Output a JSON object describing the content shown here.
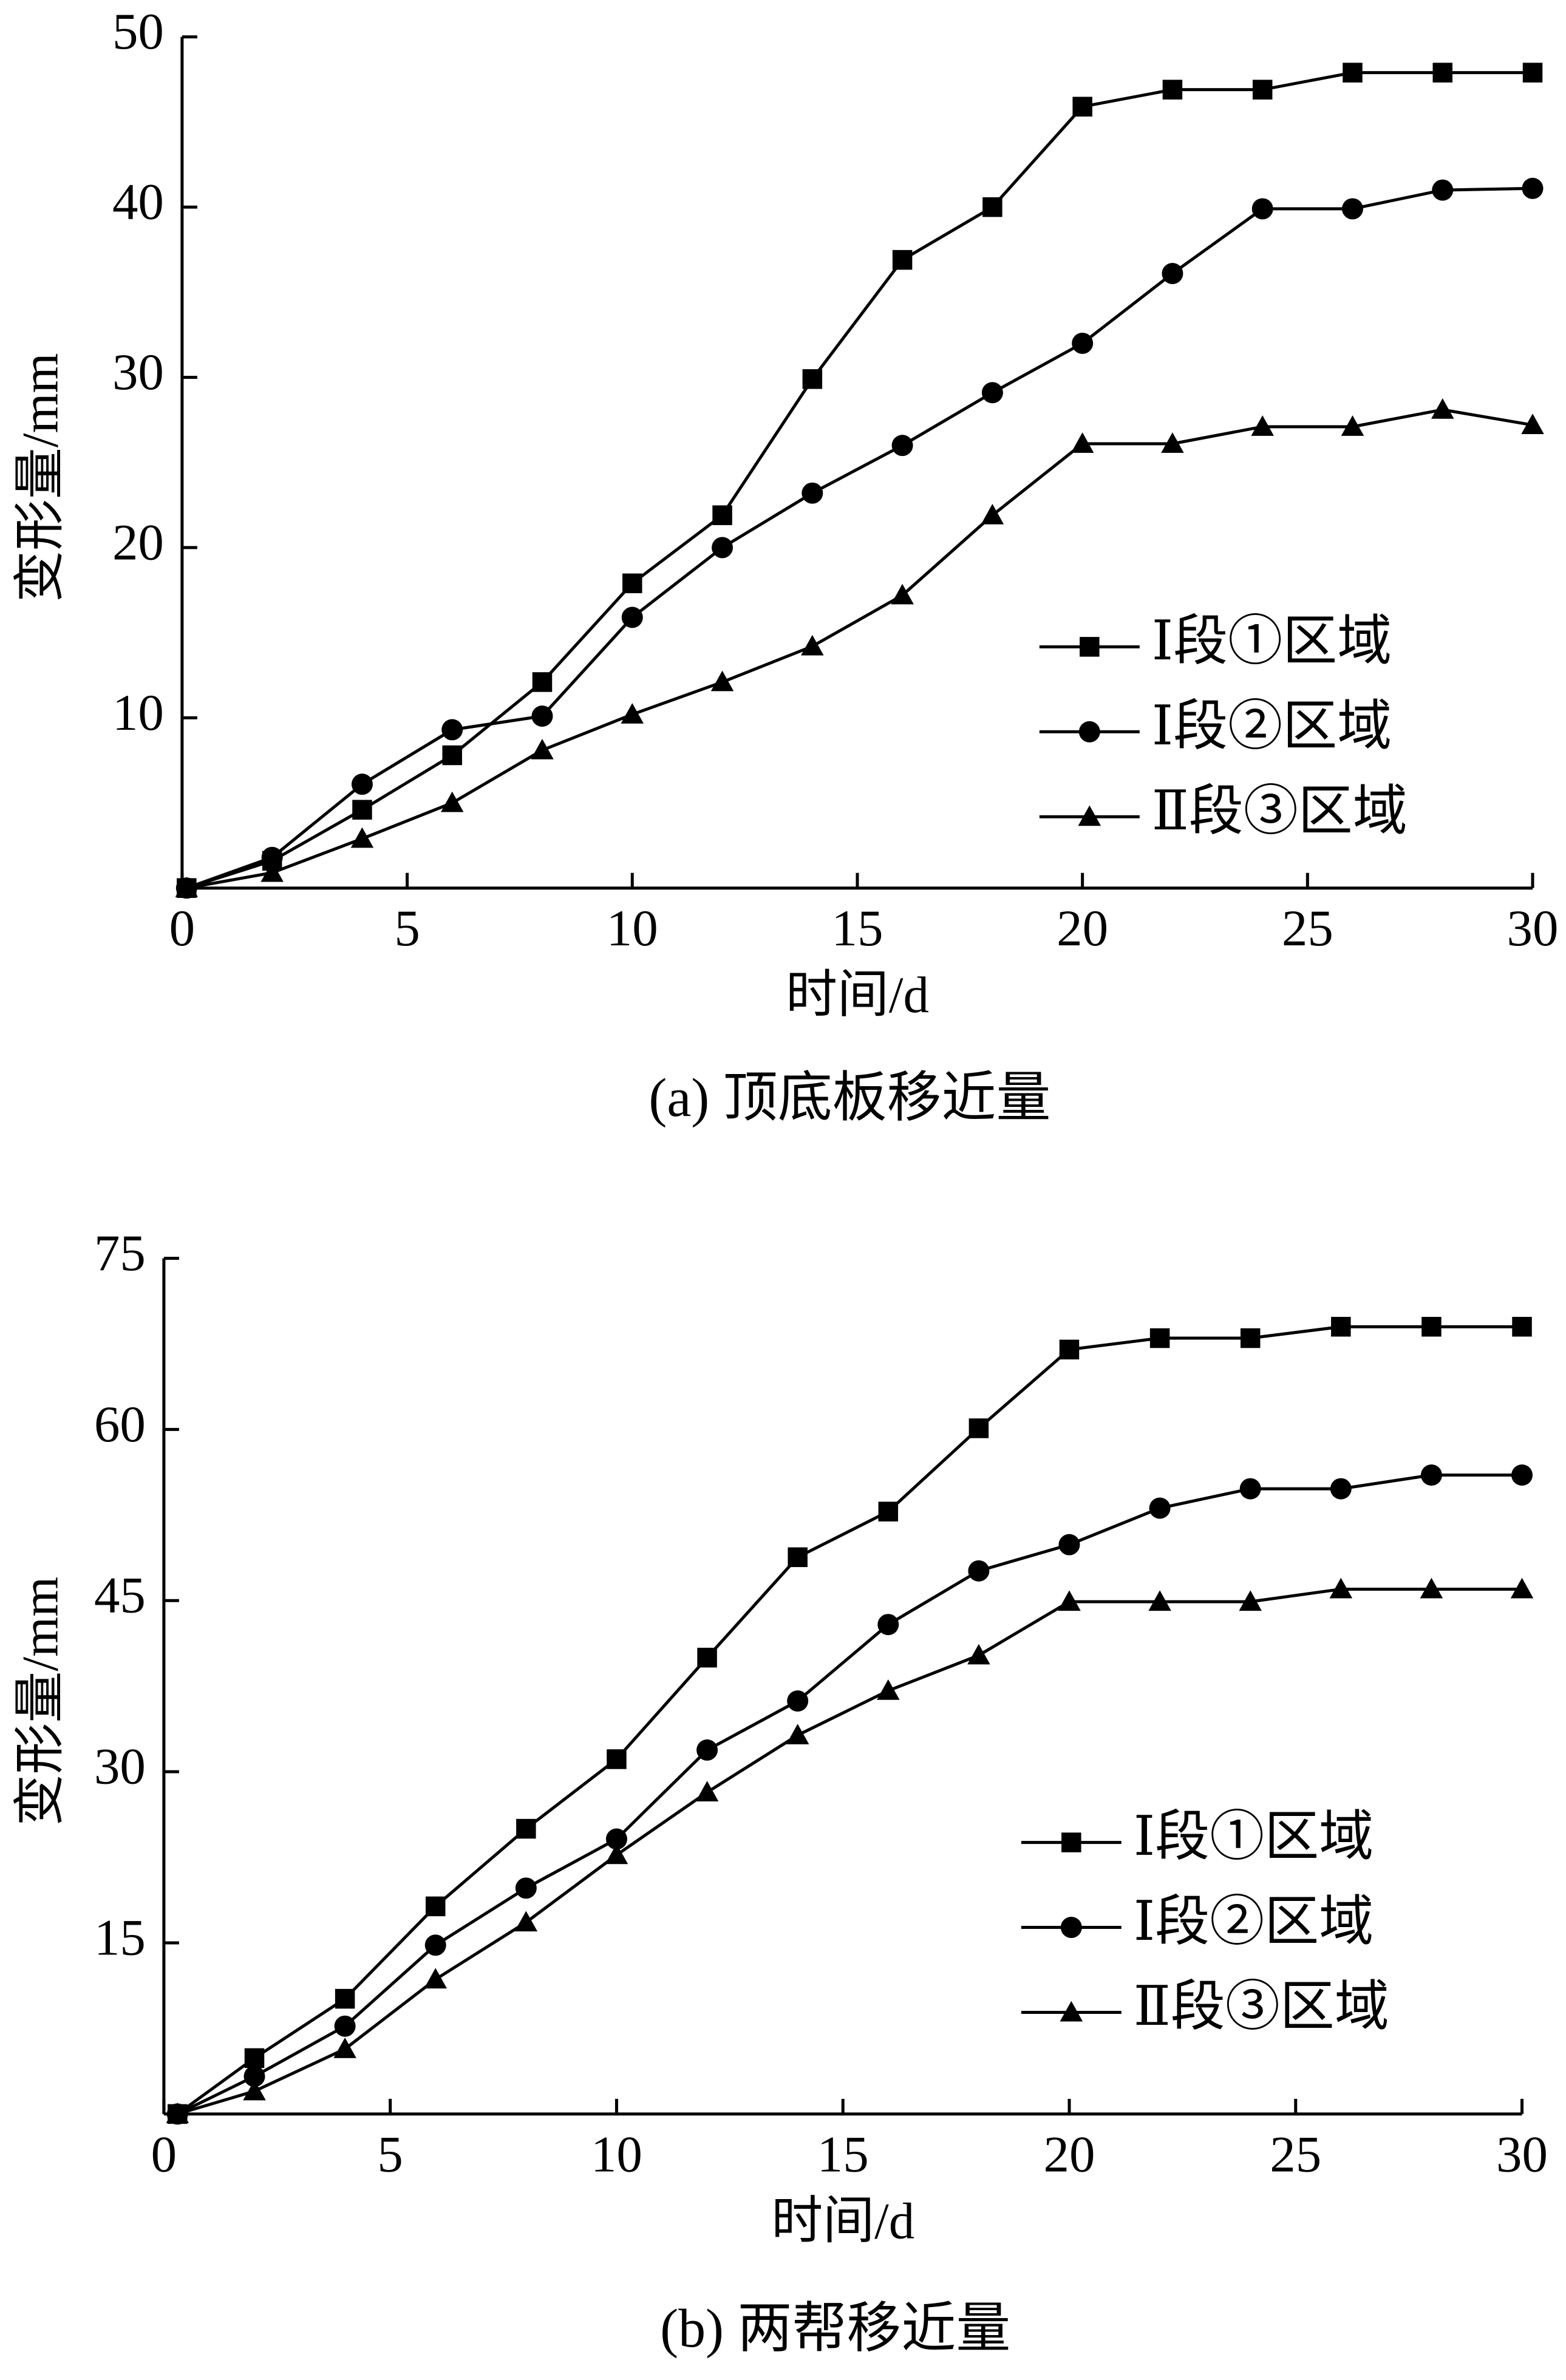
{
  "chart_data": [
    {
      "type": "line",
      "caption": "(a)  顶底板移近量",
      "xlabel": "时间/d",
      "ylabel": "变形量/mm",
      "x": [
        0.1,
        2,
        4,
        6,
        8,
        10,
        12,
        14,
        16,
        18,
        20,
        22,
        24,
        26,
        28,
        30
      ],
      "xlim": [
        0,
        30
      ],
      "xticks": [
        0,
        5,
        10,
        15,
        20,
        25,
        30
      ],
      "ylim": [
        0,
        50
      ],
      "yticks": [
        10,
        20,
        30,
        40,
        50
      ],
      "series": [
        {
          "name": "Ⅰ段①区域",
          "color": "#000000",
          "marker": "square",
          "values": [
            0,
            1.6,
            4.6,
            7.8,
            12.1,
            17.9,
            21.9,
            29.9,
            36.9,
            40,
            45.9,
            46.9,
            46.9,
            47.9,
            47.9,
            47.9
          ]
        },
        {
          "name": "Ⅰ段②区域",
          "color": "#000000",
          "marker": "circle",
          "values": [
            0,
            1.8,
            6.1,
            9.3,
            10.1,
            15.9,
            20,
            23.2,
            26,
            29.1,
            32,
            36.1,
            39.9,
            39.9,
            41,
            41.1
          ]
        },
        {
          "name": "Ⅱ段③区域",
          "color": "#000000",
          "marker": "triangle",
          "values": [
            0,
            0.9,
            2.9,
            5,
            8.1,
            10.2,
            12.1,
            14.2,
            17.2,
            21.9,
            26.1,
            26.1,
            27.1,
            27.1,
            28.1,
            27.2
          ]
        }
      ]
    },
    {
      "type": "line",
      "caption": "(b)  两帮移近量",
      "xlabel": "时间/d",
      "ylabel": "变形量/mm",
      "x": [
        0.3,
        2,
        4,
        6,
        8,
        10,
        12,
        14,
        16,
        18,
        20,
        22,
        24,
        26,
        28,
        30
      ],
      "xlim": [
        0,
        30
      ],
      "xticks": [
        0,
        5,
        10,
        15,
        20,
        25,
        30
      ],
      "ylim": [
        0,
        75
      ],
      "yticks": [
        15,
        30,
        45,
        60,
        75
      ],
      "series": [
        {
          "name": "Ⅰ段①区域",
          "color": "#000000",
          "marker": "square",
          "values": [
            0,
            4.9,
            10.1,
            18.2,
            25,
            31.1,
            40,
            48.8,
            52.8,
            60.1,
            67,
            68,
            68,
            69,
            69,
            69
          ]
        },
        {
          "name": "Ⅰ段②区域",
          "color": "#000000",
          "marker": "circle",
          "values": [
            0,
            3.3,
            7.7,
            14.8,
            19.8,
            24.1,
            31.9,
            36.2,
            42.9,
            47.6,
            49.9,
            53.1,
            54.8,
            54.8,
            56,
            56
          ]
        },
        {
          "name": "Ⅱ段③区域",
          "color": "#000000",
          "marker": "triangle",
          "values": [
            0,
            2,
            5.7,
            11.8,
            16.8,
            22.7,
            28.2,
            33.2,
            37.1,
            40.2,
            44.9,
            44.9,
            44.9,
            46,
            46,
            46
          ]
        }
      ]
    }
  ]
}
